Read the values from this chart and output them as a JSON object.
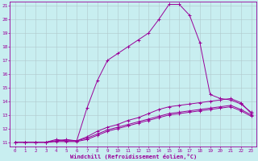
{
  "xlabel": "Windchill (Refroidissement éolien,°C)",
  "bg_color": "#c8eef0",
  "line_color": "#990099",
  "grid_color": "#b0c8cc",
  "xlim": [
    -0.5,
    23.5
  ],
  "ylim": [
    10.7,
    21.3
  ],
  "xticks": [
    0,
    1,
    2,
    3,
    4,
    5,
    6,
    7,
    8,
    9,
    10,
    11,
    12,
    13,
    14,
    15,
    16,
    17,
    18,
    19,
    20,
    21,
    22,
    23
  ],
  "yticks": [
    11,
    12,
    13,
    14,
    15,
    16,
    17,
    18,
    19,
    20,
    21
  ],
  "lines": [
    {
      "x": [
        0,
        1,
        2,
        3,
        4,
        5,
        6,
        7,
        8,
        9,
        10,
        11,
        12,
        13,
        14,
        15,
        16,
        17,
        18,
        19,
        20,
        21,
        22,
        23
      ],
      "y": [
        11,
        11,
        11,
        11,
        11.2,
        11.1,
        11.1,
        13.5,
        15.5,
        17.0,
        17.5,
        18.0,
        18.5,
        19.0,
        20.0,
        21.1,
        21.1,
        20.3,
        18.3,
        14.5,
        14.2,
        14.1,
        13.8,
        13.2
      ]
    },
    {
      "x": [
        0,
        1,
        2,
        3,
        4,
        5,
        6,
        7,
        8,
        9,
        10,
        11,
        12,
        13,
        14,
        15,
        16,
        17,
        18,
        19,
        20,
        21,
        22,
        23
      ],
      "y": [
        11,
        11,
        11,
        11,
        11.1,
        11.1,
        11.1,
        11.4,
        11.8,
        12.1,
        12.3,
        12.6,
        12.8,
        13.1,
        13.4,
        13.6,
        13.7,
        13.8,
        13.9,
        14.0,
        14.1,
        14.2,
        13.9,
        13.1
      ]
    },
    {
      "x": [
        0,
        1,
        2,
        3,
        4,
        5,
        6,
        7,
        8,
        9,
        10,
        11,
        12,
        13,
        14,
        15,
        16,
        17,
        18,
        19,
        20,
        21,
        22,
        23
      ],
      "y": [
        11,
        11,
        11,
        11,
        11.05,
        11.05,
        11.05,
        11.2,
        11.5,
        11.8,
        12.0,
        12.2,
        12.4,
        12.6,
        12.8,
        13.0,
        13.1,
        13.2,
        13.3,
        13.4,
        13.5,
        13.6,
        13.3,
        12.9
      ]
    },
    {
      "x": [
        0,
        1,
        2,
        3,
        4,
        5,
        6,
        7,
        8,
        9,
        10,
        11,
        12,
        13,
        14,
        15,
        16,
        17,
        18,
        19,
        20,
        21,
        22,
        23
      ],
      "y": [
        11,
        11,
        11,
        11,
        11.1,
        11.2,
        11.1,
        11.3,
        11.6,
        11.9,
        12.1,
        12.3,
        12.5,
        12.7,
        12.9,
        13.1,
        13.2,
        13.3,
        13.4,
        13.5,
        13.6,
        13.7,
        13.4,
        13.0
      ]
    }
  ]
}
